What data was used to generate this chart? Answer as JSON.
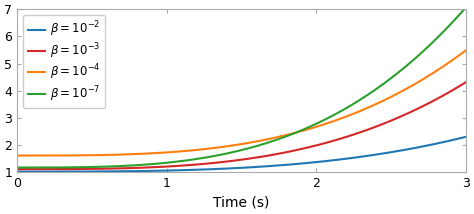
{
  "title": "",
  "xlabel": "Time (s)",
  "ylabel": "",
  "xlim": [
    0,
    3
  ],
  "ylim": [
    1,
    7
  ],
  "yticks": [
    1,
    2,
    3,
    4,
    5,
    6,
    7
  ],
  "xticks": [
    0,
    1,
    2,
    3
  ],
  "curves": [
    {
      "label": "$\\beta = 10^{-2}$",
      "color": "#1f77b4",
      "a": 1.03,
      "b": 0.038,
      "p": 3.2
    },
    {
      "label": "$\\beta = 10^{-3}$",
      "color": "#d62728",
      "a": 1.12,
      "b": 0.095,
      "p": 3.2
    },
    {
      "label": "$\\beta = 10^{-4}$",
      "color": "#ff7f0e",
      "a": 1.62,
      "b": 0.115,
      "p": 3.2
    },
    {
      "label": "$\\beta = 10^{-7}$",
      "color": "#2ca02c",
      "a": 1.18,
      "b": 0.175,
      "p": 3.2
    }
  ],
  "figsize": [
    4.74,
    2.14
  ],
  "dpi": 100,
  "background_color": "#ffffff",
  "legend_fontsize": 8.5,
  "tick_fontsize": 9,
  "xlabel_fontsize": 10
}
